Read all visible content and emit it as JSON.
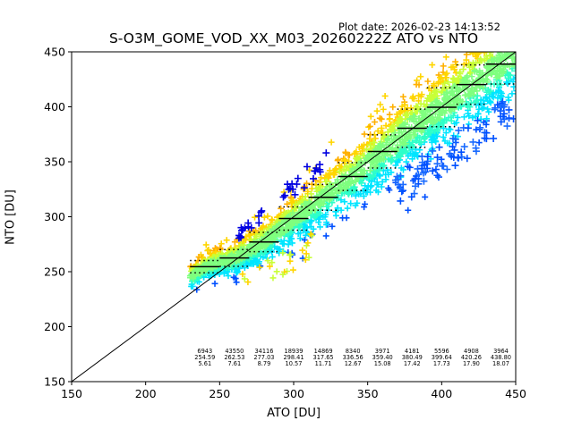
{
  "plot_date": "Plot date: 2026-02-23 14:13:52",
  "chart_data": {
    "type": "scatter",
    "title": "S-O3M_GOME_VOD_XX_M03_20260222Z ATO vs NTO",
    "xlabel": "ATO [DU]",
    "ylabel": "NTO [DU]",
    "xlim": [
      150,
      450
    ],
    "ylim": [
      150,
      450
    ],
    "xticks": [
      150,
      200,
      250,
      300,
      350,
      400,
      450
    ],
    "yticks": [
      150,
      200,
      250,
      300,
      350,
      400,
      450
    ],
    "grid": false,
    "legend": "none",
    "reference_line": [
      [
        150,
        150
      ],
      [
        450,
        450
      ]
    ],
    "bins": [
      {
        "x_low": 230,
        "x_high": 250,
        "count": "6943",
        "mean": "254.59",
        "std": "5.61",
        "mean_val": 254.59,
        "std_val": 5.61
      },
      {
        "x_low": 250,
        "x_high": 270,
        "count": "43550",
        "mean": "262.53",
        "std": "7.61",
        "mean_val": 262.53,
        "std_val": 7.61
      },
      {
        "x_low": 270,
        "x_high": 290,
        "count": "34116",
        "mean": "277.03",
        "std": "8.79",
        "mean_val": 277.03,
        "std_val": 8.79
      },
      {
        "x_low": 290,
        "x_high": 310,
        "count": "18939",
        "mean": "298.41",
        "std": "10.57",
        "mean_val": 298.41,
        "std_val": 10.57
      },
      {
        "x_low": 310,
        "x_high": 330,
        "count": "14869",
        "mean": "317.65",
        "std": "11.71",
        "mean_val": 317.65,
        "std_val": 11.71
      },
      {
        "x_low": 330,
        "x_high": 350,
        "count": "8340",
        "mean": "336.56",
        "std": "12.67",
        "mean_val": 336.56,
        "std_val": 12.67
      },
      {
        "x_low": 350,
        "x_high": 370,
        "count": "3971",
        "mean": "359.40",
        "std": "15.08",
        "mean_val": 359.4,
        "std_val": 15.08
      },
      {
        "x_low": 370,
        "x_high": 390,
        "count": "4181",
        "mean": "380.49",
        "std": "17.42",
        "mean_val": 380.49,
        "std_val": 17.42
      },
      {
        "x_low": 390,
        "x_high": 410,
        "count": "5596",
        "mean": "399.64",
        "std": "17.73",
        "mean_val": 399.64,
        "std_val": 17.73
      },
      {
        "x_low": 410,
        "x_high": 430,
        "count": "4908",
        "mean": "420.26",
        "std": "17.90",
        "mean_val": 420.26,
        "std_val": 17.9
      },
      {
        "x_low": 430,
        "x_high": 450,
        "count": "3964",
        "mean": "438.80",
        "std": "18.07",
        "mean_val": 438.8,
        "std_val": 18.07
      }
    ],
    "marker": "+",
    "colors": {
      "dense_core": "#7fff7f",
      "mid": "#2effc8",
      "cyan": "#00e5ff",
      "yellow": "#ffd500",
      "yellow_green": "#c8ff37",
      "orange": "#ffb000",
      "blue": "#0050ff",
      "dark_blue": "#0000e0",
      "axis": "#000000"
    }
  }
}
